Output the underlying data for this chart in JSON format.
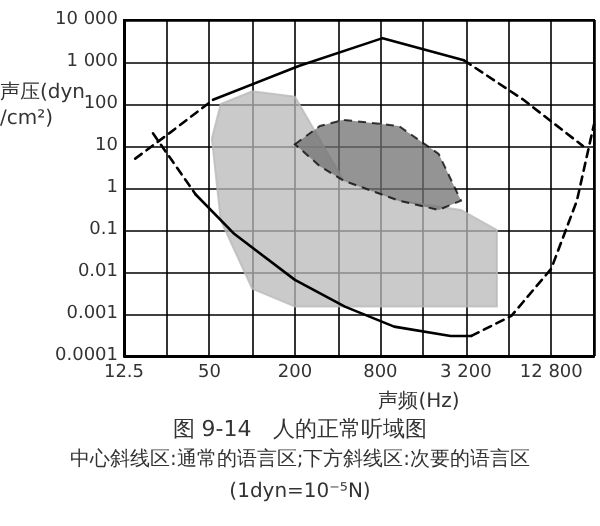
{
  "chart_data": {
    "type": "line",
    "title": "图 9-14　人的正常听域图",
    "xlabel": "声频(Hz)",
    "ylabel": "声压(dyn/cm²)",
    "annotations": [
      "中心斜线区:通常的语言区;下方斜线区:次要的语言区",
      "(1dyn=10⁻⁵N)"
    ],
    "log": "xy",
    "grid": true,
    "marker": "none",
    "xlim": [
      12.5,
      25600
    ],
    "ylim": [
      0.0001,
      10000
    ],
    "xticks": [
      12.5,
      {
        "value": 25,
        "label": null
      },
      50,
      {
        "value": 100,
        "label": null
      },
      200,
      {
        "value": 400,
        "label": null
      },
      800,
      {
        "value": 1600,
        "label": null
      },
      {
        "value": 3200,
        "label": "3 200"
      },
      {
        "value": 6400,
        "label": null
      },
      {
        "value": 12800,
        "label": "12 800"
      },
      {
        "value": 25600,
        "label": null
      }
    ],
    "yticks": [
      0.0001,
      0.001,
      0.01,
      0.1,
      1,
      10,
      100,
      {
        "value": 1000,
        "label": "1 000"
      },
      {
        "value": 10000,
        "label": "10 000"
      }
    ],
    "series": [
      {
        "type": "area",
        "color": "#b8b8b8",
        "x": [
          52,
          60,
          100,
          200,
          440,
          1080,
          2960,
          5300,
          5300,
          2960,
          1080,
          440,
          200,
          100,
          60
        ],
        "values": [
          15,
          100,
          200,
          150,
          1.5,
          0.5,
          0.3,
          0.1,
          0.0015,
          0.0015,
          0.0015,
          0.0015,
          0.0015,
          0.004,
          0.17
        ]
      },
      {
        "type": "area",
        "color": "#707070",
        "line_style": "dashed",
        "x": [
          200,
          300,
          440,
          1080,
          2060,
          2960,
          2060,
          1080,
          440,
          300
        ],
        "values": [
          11,
          30,
          42,
          30,
          6.5,
          0.5,
          0.3,
          0.5,
          1.5,
          3.3
        ]
      },
      {
        "color": "#000000",
        "line_style": "dashed",
        "x": [
          20,
          40
        ],
        "values": [
          20,
          0.7
        ]
      },
      {
        "color": "#000000",
        "line_style": "solid",
        "x": [
          40,
          75,
          200,
          450,
          1000,
          2500,
          3500
        ],
        "values": [
          0.7,
          0.08,
          0.0065,
          0.0015,
          0.0005,
          0.0003,
          0.0003
        ]
      },
      {
        "color": "#000000",
        "line_style": "dashed",
        "x": [
          3500,
          6700,
          12800,
          19400,
          25600
        ],
        "values": [
          0.0003,
          0.0009,
          0.012,
          0.5,
          33
        ]
      },
      {
        "color": "#000000",
        "line_style": "dashed",
        "x": [
          15,
          26,
          53
        ],
        "values": [
          5,
          20,
          126
        ]
      },
      {
        "color": "#000000",
        "line_style": "solid",
        "x": [
          53,
          213,
          830,
          3100
        ],
        "values": [
          126,
          800,
          3700,
          1100
        ]
      },
      {
        "color": "#000000",
        "line_style": "dashed",
        "x": [
          3100,
          8150,
          21400
        ],
        "values": [
          1100,
          126,
          10
        ]
      }
    ]
  }
}
